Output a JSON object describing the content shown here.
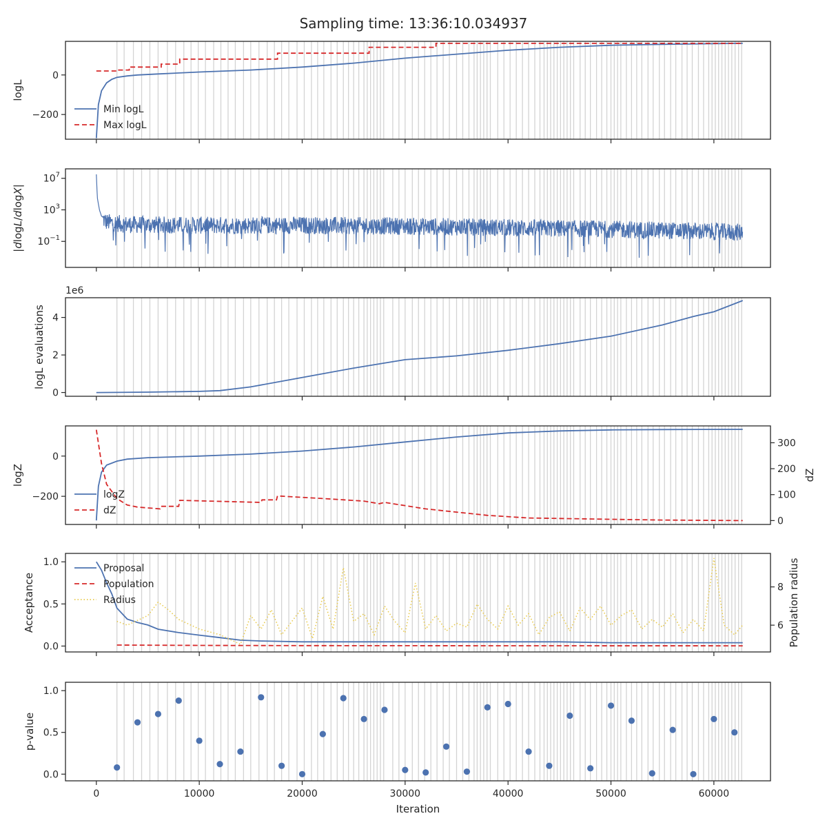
{
  "figure": {
    "title": "Sampling time: 13:36:10.034937"
  },
  "colors": {
    "blue": "#4c72b0",
    "red": "#d62728",
    "yellow": "#e8c94a",
    "grid": "#d3d3d3",
    "axis": "#262626"
  },
  "chart_data": [
    {
      "id": "logl",
      "type": "line",
      "xlim": [
        -3000,
        65500
      ],
      "ylim": [
        -325,
        170
      ],
      "ylabel": "logL",
      "yticks": [
        {
          "v": -200,
          "label": "−200"
        },
        {
          "v": 0,
          "label": "0"
        }
      ],
      "legend": {
        "placement": "lower-left",
        "entries": [
          {
            "name": "Min logL",
            "style": "solid",
            "color": "blue"
          },
          {
            "name": "Max logL",
            "style": "dashed",
            "color": "red"
          }
        ]
      },
      "series": [
        {
          "name": "Min logL",
          "color": "blue",
          "style": "solid",
          "x": [
            0,
            200,
            500,
            1000,
            1500,
            2000,
            3000,
            4000,
            6000,
            8000,
            10000,
            15000,
            20000,
            25000,
            30000,
            35000,
            40000,
            45000,
            50000,
            55000,
            60000,
            62800
          ],
          "y": [
            -320,
            -150,
            -80,
            -40,
            -22,
            -12,
            -5,
            0,
            5,
            10,
            15,
            25,
            40,
            60,
            85,
            105,
            125,
            140,
            150,
            155,
            158,
            160
          ]
        },
        {
          "name": "Max logL",
          "color": "red",
          "style": "dashed",
          "x": [
            0,
            2000,
            2001,
            3200,
            3201,
            6300,
            6301,
            8100,
            8101,
            17600,
            17601,
            26500,
            26501,
            33000,
            33001,
            62800
          ],
          "y": [
            20,
            20,
            25,
            25,
            40,
            40,
            55,
            55,
            80,
            80,
            110,
            110,
            140,
            140,
            160,
            160
          ]
        }
      ]
    },
    {
      "id": "dlogl",
      "type": "line",
      "xlim": [
        -3000,
        65500
      ],
      "ylog": true,
      "ylim_log10": [
        -4.3,
        8.2
      ],
      "ylabel": "|dlogL/dlogX|",
      "yticks": [
        {
          "v": -1,
          "label": "10",
          "exp": "−1"
        },
        {
          "v": 3,
          "label": "10",
          "exp": "3"
        },
        {
          "v": 7,
          "label": "10",
          "exp": "7"
        }
      ],
      "series": [
        {
          "name": "",
          "color": "blue",
          "style": "solid",
          "x": [
            0,
            100,
            300,
            500,
            1000,
            3000,
            10000,
            20000,
            30000,
            40000,
            50000,
            60000,
            62800
          ],
          "log10_center": [
            7.5,
            4.5,
            3.0,
            2.2,
            1.7,
            1.4,
            1.3,
            1.3,
            1.2,
            1.0,
            0.8,
            0.5,
            0.4
          ],
          "log10_band": 2.2
        }
      ]
    },
    {
      "id": "evals",
      "type": "line",
      "xlim": [
        -3000,
        65500
      ],
      "ylim": [
        -0.2,
        5.05
      ],
      "ylabel": "logL evaluations",
      "offset_text": "1e6",
      "yticks": [
        {
          "v": 0,
          "label": "0"
        },
        {
          "v": 2,
          "label": "2"
        },
        {
          "v": 4,
          "label": "4"
        }
      ],
      "series": [
        {
          "name": "",
          "color": "blue",
          "style": "solid",
          "x": [
            0,
            5000,
            10000,
            12000,
            15000,
            20000,
            25000,
            30000,
            35000,
            40000,
            45000,
            50000,
            55000,
            58000,
            60000,
            62800
          ],
          "y": [
            0,
            0.02,
            0.06,
            0.1,
            0.3,
            0.8,
            1.3,
            1.75,
            1.95,
            2.25,
            2.6,
            3.0,
            3.6,
            4.05,
            4.3,
            4.9
          ]
        }
      ]
    },
    {
      "id": "logz",
      "type": "line",
      "xlim": [
        -3000,
        65500
      ],
      "ylim": [
        -340,
        150
      ],
      "ylim_right": [
        -15,
        365
      ],
      "ylabel": "logZ",
      "ylabel_right": "dZ",
      "yticks": [
        {
          "v": -200,
          "label": "−200"
        },
        {
          "v": 0,
          "label": "0"
        }
      ],
      "yticks_right": [
        {
          "v": 0,
          "label": "0"
        },
        {
          "v": 100,
          "label": "100"
        },
        {
          "v": 200,
          "label": "200"
        },
        {
          "v": 300,
          "label": "300"
        }
      ],
      "legend": {
        "placement": "lower-left",
        "entries": [
          {
            "name": "logZ",
            "style": "solid",
            "color": "blue"
          },
          {
            "name": "dZ",
            "style": "dashed",
            "color": "red"
          }
        ]
      },
      "series": [
        {
          "name": "logZ",
          "color": "blue",
          "style": "solid",
          "axis": "left",
          "x": [
            0,
            200,
            500,
            1000,
            2000,
            3000,
            5000,
            10000,
            15000,
            20000,
            25000,
            30000,
            35000,
            40000,
            45000,
            50000,
            55000,
            62800
          ],
          "y": [
            -320,
            -150,
            -80,
            -45,
            -25,
            -15,
            -8,
            0,
            10,
            25,
            45,
            70,
            95,
            115,
            125,
            130,
            132,
            133
          ]
        },
        {
          "name": "dZ",
          "color": "red",
          "style": "dashed",
          "axis": "right",
          "x": [
            0,
            500,
            1000,
            2000,
            3000,
            4000,
            6200,
            6300,
            8000,
            8100,
            16000,
            16100,
            17500,
            17600,
            22000,
            26000,
            27500,
            28000,
            32000,
            38000,
            42000,
            50000,
            55000,
            62800
          ],
          "y": [
            350,
            220,
            140,
            85,
            60,
            52,
            45,
            55,
            55,
            78,
            70,
            80,
            80,
            95,
            85,
            75,
            65,
            70,
            45,
            20,
            10,
            5,
            2,
            0
          ]
        }
      ]
    },
    {
      "id": "acceptance",
      "type": "line",
      "xlim": [
        -3000,
        65500
      ],
      "ylim": [
        -0.07,
        1.1
      ],
      "ylim_right": [
        4.6,
        9.75
      ],
      "ylabel": "Acceptance",
      "ylabel_right": "Population radius",
      "yticks": [
        {
          "v": 0,
          "label": "0.0"
        },
        {
          "v": 0.5,
          "label": "0.5"
        },
        {
          "v": 1.0,
          "label": "1.0"
        }
      ],
      "yticks_right": [
        {
          "v": 6,
          "label": "6"
        },
        {
          "v": 8,
          "label": "8"
        }
      ],
      "legend": {
        "placement": "upper-left",
        "entries": [
          {
            "name": "Proposal",
            "style": "solid",
            "color": "blue"
          },
          {
            "name": "Population",
            "style": "dashed",
            "color": "red"
          },
          {
            "name": "Radius",
            "style": "dotted",
            "color": "yellow"
          }
        ]
      },
      "series": [
        {
          "name": "Proposal",
          "color": "blue",
          "style": "solid",
          "axis": "left",
          "x": [
            0,
            500,
            1000,
            1500,
            2000,
            3000,
            4000,
            5000,
            6000,
            8000,
            10000,
            12000,
            14000,
            16000,
            20000,
            25000,
            30000,
            35000,
            40000,
            45000,
            50000,
            55000,
            60000,
            62800
          ],
          "y": [
            1.0,
            0.9,
            0.75,
            0.62,
            0.45,
            0.32,
            0.28,
            0.25,
            0.2,
            0.16,
            0.13,
            0.1,
            0.07,
            0.06,
            0.05,
            0.05,
            0.05,
            0.05,
            0.05,
            0.05,
            0.04,
            0.04,
            0.04,
            0.04
          ]
        },
        {
          "name": "Population",
          "color": "red",
          "style": "dashed",
          "axis": "left",
          "x": [
            2000,
            10000,
            20000,
            40000,
            62800
          ],
          "y": [
            0.012,
            0.008,
            0.005,
            0.004,
            0.003
          ]
        },
        {
          "name": "Radius",
          "color": "yellow",
          "style": "dotted",
          "axis": "right",
          "x": [
            2000,
            3000,
            5000,
            6000,
            7000,
            8000,
            10000,
            12000,
            14000,
            15000,
            16000,
            17000,
            18000,
            19000,
            20000,
            21000,
            22000,
            23000,
            24000,
            25000,
            26000,
            27000,
            28000,
            29000,
            30000,
            31000,
            32000,
            33000,
            34000,
            35000,
            36000,
            37000,
            38000,
            39000,
            40000,
            41000,
            42000,
            43000,
            44000,
            45000,
            46000,
            47000,
            48000,
            49000,
            50000,
            51000,
            52000,
            53000,
            54000,
            55000,
            56000,
            57000,
            58000,
            59000,
            60000,
            61000,
            62000,
            62800
          ],
          "y": [
            6.2,
            6.0,
            6.5,
            7.2,
            6.8,
            6.3,
            5.8,
            5.5,
            5.0,
            6.5,
            5.8,
            6.8,
            5.5,
            6.2,
            6.9,
            5.3,
            7.5,
            5.8,
            9.0,
            6.2,
            6.6,
            5.5,
            7.0,
            6.2,
            5.6,
            8.2,
            5.8,
            6.5,
            5.7,
            6.1,
            5.9,
            7.1,
            6.3,
            5.8,
            7.0,
            6.0,
            6.6,
            5.5,
            6.4,
            6.7,
            5.7,
            6.9,
            6.3,
            7.0,
            6.0,
            6.5,
            6.8,
            5.8,
            6.3,
            5.9,
            6.6,
            5.6,
            6.3,
            5.7,
            9.5,
            6.0,
            5.5,
            6.0
          ]
        }
      ]
    },
    {
      "id": "pvalue",
      "type": "scatter",
      "xlim": [
        -3000,
        65500
      ],
      "ylim": [
        -0.08,
        1.1
      ],
      "ylabel": "p-value",
      "xlabel": "Iteration",
      "yticks": [
        {
          "v": 0,
          "label": "0.0"
        },
        {
          "v": 0.5,
          "label": "0.5"
        },
        {
          "v": 1.0,
          "label": "1.0"
        }
      ],
      "xticks": [
        {
          "v": 0,
          "label": "0"
        },
        {
          "v": 10000,
          "label": "10000"
        },
        {
          "v": 20000,
          "label": "20000"
        },
        {
          "v": 30000,
          "label": "30000"
        },
        {
          "v": 40000,
          "label": "40000"
        },
        {
          "v": 50000,
          "label": "50000"
        },
        {
          "v": 60000,
          "label": "60000"
        }
      ],
      "series": [
        {
          "name": "",
          "color": "blue",
          "x": [
            2000,
            4000,
            6000,
            8000,
            10000,
            12000,
            14000,
            16000,
            18000,
            20000,
            22000,
            24000,
            26000,
            28000,
            30000,
            32000,
            34000,
            36000,
            38000,
            40000,
            42000,
            44000,
            46000,
            48000,
            50000,
            52000,
            54000,
            56000,
            58000,
            60000,
            62000
          ],
          "y": [
            0.08,
            0.62,
            0.72,
            0.88,
            0.4,
            0.12,
            0.27,
            0.92,
            0.1,
            0.0,
            0.48,
            0.91,
            0.66,
            0.77,
            0.05,
            0.02,
            0.33,
            0.03,
            0.8,
            0.84,
            0.27,
            0.1,
            0.7,
            0.07,
            0.82,
            0.64,
            0.01,
            0.53,
            0.0,
            0.66,
            0.5
          ]
        }
      ]
    }
  ],
  "vlines": {
    "color": "grid",
    "dense_ranges": [
      [
        26000,
        28200
      ],
      [
        37000,
        38500
      ],
      [
        43500,
        46500
      ],
      [
        50000,
        51000
      ],
      [
        59500,
        62100
      ]
    ],
    "x": [
      2000,
      2700,
      3600,
      4400,
      5200,
      6000,
      6900,
      7700,
      8500,
      9200,
      9900,
      10600,
      11400,
      12100,
      12800,
      13500,
      14300,
      15000,
      15800,
      16600,
      17300,
      18000,
      18700,
      19500,
      20200,
      20900,
      21500,
      22100,
      22800,
      23400,
      24000,
      24500,
      25000,
      25500,
      28800,
      29400,
      30000,
      30700,
      31300,
      31900,
      32500,
      33100,
      33700,
      34300,
      35000,
      35600,
      36200,
      36700,
      39000,
      39600,
      40200,
      40800,
      41400,
      42000,
      42600,
      43100,
      47000,
      47500,
      48000,
      48600,
      49100,
      49600,
      51500,
      52000,
      52500,
      53000,
      53600,
      54100,
      54700,
      55200,
      55800,
      56300,
      56900,
      57400,
      57900,
      58500,
      59000,
      62400,
      62700
    ]
  }
}
